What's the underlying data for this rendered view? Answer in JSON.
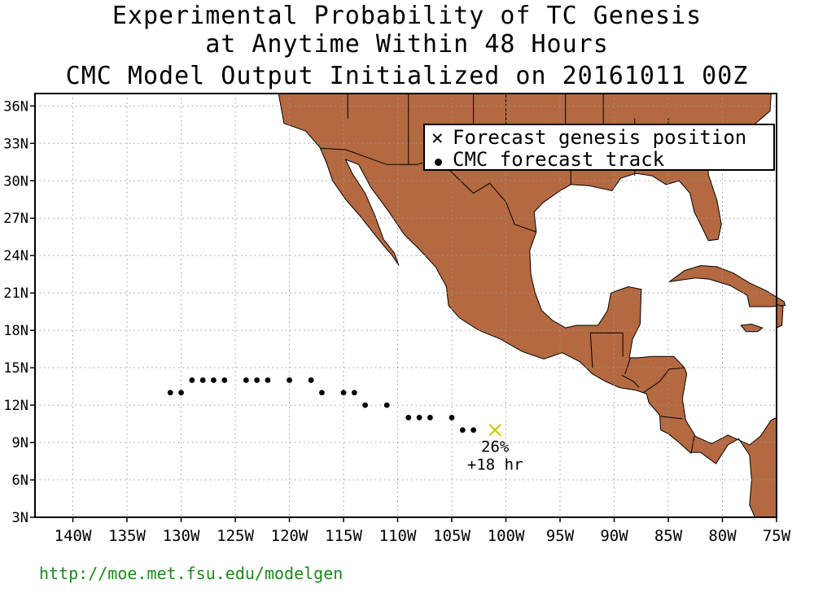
{
  "title": {
    "line1": "Experimental Probability of TC Genesis",
    "line2": "at Anytime Within 48 Hours",
    "line3": "CMC Model Output Initialized on 20161011 00Z"
  },
  "legend": {
    "genesis_label": "Forecast genesis position",
    "track_label": "CMC forecast track"
  },
  "axes": {
    "lat_ticks": [
      "36N",
      "33N",
      "30N",
      "27N",
      "24N",
      "21N",
      "18N",
      "15N",
      "12N",
      "9N",
      "6N",
      "3N"
    ],
    "lat_values": [
      36,
      33,
      30,
      27,
      24,
      21,
      18,
      15,
      12,
      9,
      6,
      3
    ],
    "lon_ticks": [
      "140W",
      "135W",
      "130W",
      "125W",
      "120W",
      "115W",
      "110W",
      "105W",
      "100W",
      "95W",
      "90W",
      "85W",
      "80W",
      "75W"
    ],
    "lon_values": [
      -140,
      -135,
      -130,
      -125,
      -120,
      -115,
      -110,
      -105,
      -100,
      -95,
      -90,
      -85,
      -80,
      -75
    ]
  },
  "genesis": {
    "lon": -101,
    "lat": 10,
    "probability_label": "26%",
    "lead_label": "+18 hr"
  },
  "track": [
    {
      "lon": -131,
      "lat": 13
    },
    {
      "lon": -130,
      "lat": 13
    },
    {
      "lon": -129,
      "lat": 14
    },
    {
      "lon": -128,
      "lat": 14
    },
    {
      "lon": -127,
      "lat": 14
    },
    {
      "lon": -126,
      "lat": 14
    },
    {
      "lon": -124,
      "lat": 14
    },
    {
      "lon": -123,
      "lat": 14
    },
    {
      "lon": -122,
      "lat": 14
    },
    {
      "lon": -120,
      "lat": 14
    },
    {
      "lon": -118,
      "lat": 14
    },
    {
      "lon": -117,
      "lat": 13
    },
    {
      "lon": -115,
      "lat": 13
    },
    {
      "lon": -114,
      "lat": 13
    },
    {
      "lon": -113,
      "lat": 12
    },
    {
      "lon": -111,
      "lat": 12
    },
    {
      "lon": -109,
      "lat": 11
    },
    {
      "lon": -108,
      "lat": 11
    },
    {
      "lon": -107,
      "lat": 11
    },
    {
      "lon": -105,
      "lat": 11
    },
    {
      "lon": -104,
      "lat": 10
    },
    {
      "lon": -103,
      "lat": 10
    }
  ],
  "colors": {
    "land": "#b46941",
    "genesis_marker": "#c8c800",
    "url": "#1a8a1a"
  },
  "footer": {
    "url": "http://moe.met.fsu.edu/modelgen"
  }
}
